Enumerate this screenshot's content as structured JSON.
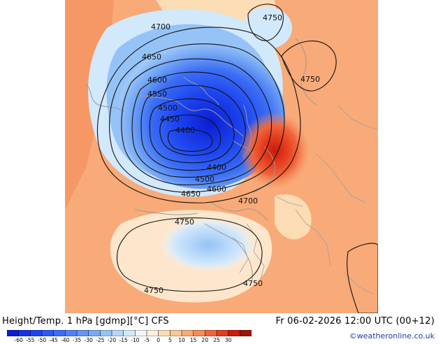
{
  "map": {
    "contour_labels": [
      {
        "id": "c4750-ne",
        "text": "4750"
      },
      {
        "id": "c4700-n",
        "text": "4700"
      },
      {
        "id": "c4650-n",
        "text": "4650"
      },
      {
        "id": "c4600-n",
        "text": "4600"
      },
      {
        "id": "c4750-e",
        "text": "4750"
      },
      {
        "id": "c4550-n",
        "text": "4550"
      },
      {
        "id": "c4500-n",
        "text": "4500"
      },
      {
        "id": "c4450-n",
        "text": "4450"
      },
      {
        "id": "c4400-w",
        "text": "4400"
      },
      {
        "id": "c4400-s",
        "text": "4400"
      },
      {
        "id": "c4500-s",
        "text": "4500"
      },
      {
        "id": "c4600-s",
        "text": "4600"
      },
      {
        "id": "c4650-s",
        "text": "4650"
      },
      {
        "id": "c4700-s",
        "text": "4700"
      },
      {
        "id": "c4750-mid",
        "text": "4750"
      },
      {
        "id": "c4750-sw",
        "text": "4750"
      },
      {
        "id": "c4750-se",
        "text": "4750"
      }
    ]
  },
  "footer": {
    "title_left": "Height/Temp. 1 hPa [gdmp][°C] CFS",
    "title_right": "Fr 06-02-2026 12:00 UTC (00+12)",
    "credit": "©weatheronline.co.uk"
  },
  "colorbar": {
    "ticks": [
      "-60",
      "-55",
      "-50",
      "-45",
      "-40",
      "-35",
      "-30",
      "-25",
      "-20",
      "-15",
      "-10",
      "-5",
      "0",
      "5",
      "10",
      "15",
      "20",
      "25",
      "30"
    ],
    "colors": [
      "#0a1ed2",
      "#1432e6",
      "#1e46f0",
      "#2d5af5",
      "#3c6ef5",
      "#5082f5",
      "#6496f5",
      "#78aaf5",
      "#96c3f7",
      "#b4d7f9",
      "#d2e8fb",
      "#eef6fd",
      "#fdf0dc",
      "#fcdcb4",
      "#fac896",
      "#f8aa78",
      "#f58c5a",
      "#f0643c",
      "#e63c1e",
      "#c81e0a",
      "#a01405"
    ]
  }
}
